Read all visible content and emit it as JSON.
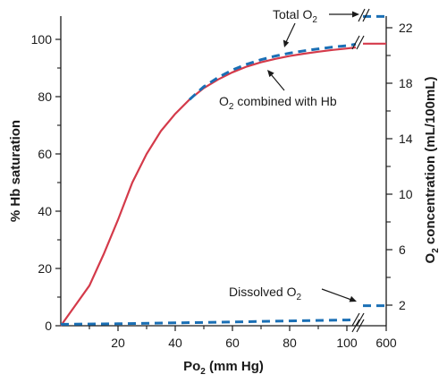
{
  "chart_data": {
    "type": "line",
    "xlabel": {
      "main": "Po",
      "sub": "2",
      "tail": " (mm Hg)"
    },
    "ylabel_left": "% Hb saturation",
    "ylabel_right": {
      "main": "O",
      "sub": "2",
      "tail": " concentration (mL/100mL)"
    },
    "x_ticks": [
      "20",
      "40",
      "60",
      "80",
      "100",
      "600"
    ],
    "y_left_ticks": [
      "0",
      "20",
      "40",
      "60",
      "80",
      "100"
    ],
    "y_right_ticks": [
      "2",
      "6",
      "10",
      "14",
      "18",
      "22"
    ],
    "xlim": [
      0,
      600
    ],
    "ylim_left": [
      0,
      100
    ],
    "series": [
      {
        "name": {
          "main": "O",
          "sub": "2",
          "tail": " combined with Hb"
        },
        "color": "#d43a4a",
        "style": "solid",
        "x": [
          0,
          5,
          10,
          15,
          20,
          25,
          30,
          35,
          40,
          45,
          50,
          55,
          60,
          65,
          70,
          75,
          80,
          85,
          90,
          95,
          100,
          104,
          600
        ],
        "y": [
          0,
          7,
          14,
          25,
          37,
          50,
          60,
          68,
          74,
          79,
          83,
          86,
          88.5,
          90.5,
          92,
          93.2,
          94.2,
          95,
          95.7,
          96.3,
          96.8,
          97.2,
          98.5
        ]
      },
      {
        "name": {
          "main": "Total O",
          "sub": "2",
          "tail": ""
        },
        "color": "#1a6fb5",
        "style": "dashed",
        "x": [
          45,
          50,
          55,
          60,
          65,
          70,
          75,
          80,
          85,
          90,
          95,
          100,
          104,
          600
        ],
        "y": [
          79,
          83.5,
          86.7,
          89.3,
          91.3,
          92.9,
          94.2,
          95.2,
          96,
          96.7,
          97.3,
          97.8,
          98.3,
          108
        ]
      },
      {
        "name": {
          "main": "Dissolved O",
          "sub": "2",
          "tail": ""
        },
        "color": "#1a6fb5",
        "style": "dashed",
        "x": [
          0,
          20,
          40,
          60,
          80,
          100,
          104,
          600
        ],
        "y": [
          0.5,
          0.7,
          1.0,
          1.3,
          1.7,
          2.0,
          2.1,
          7
        ]
      }
    ]
  }
}
